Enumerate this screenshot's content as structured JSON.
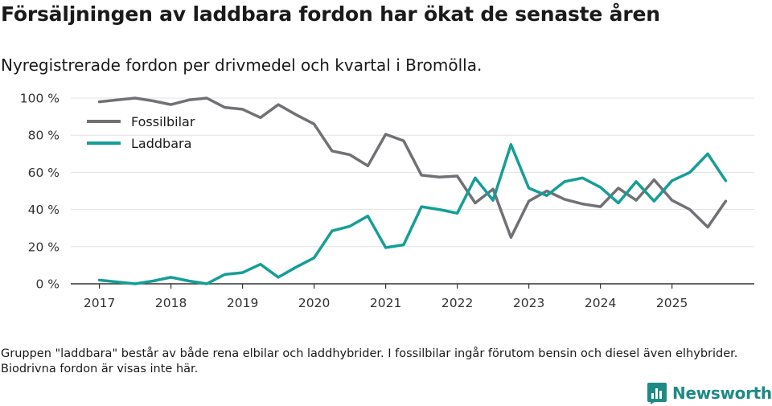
{
  "header": {
    "title": "Försäljningen av laddbara fordon har ökat de senaste åren",
    "subtitle": "Nyregistrerade fordon per drivmedel och kvartal i Bromölla."
  },
  "footer": {
    "note": "Gruppen \"laddbara\" består av både rena elbilar och laddhybrider. I fossilbilar ingår förutom bensin och diesel även elhybrider. Biodrivna fordon är visas inte här.",
    "brand": "Newsworthy"
  },
  "colors": {
    "fossil": "#717074",
    "laddbara": "#149e97",
    "grid": "#e3e3e3",
    "axis": "#333333",
    "brand": "#1e8a86"
  },
  "chart_data": {
    "type": "line",
    "title": "Försäljningen av laddbara fordon har ökat de senaste åren",
    "subtitle": "Nyregistrerade fordon per drivmedel och kvartal i Bromölla.",
    "xlabel": "",
    "ylabel": "",
    "x": [
      2017.0,
      2017.25,
      2017.5,
      2017.75,
      2018.0,
      2018.25,
      2018.5,
      2018.75,
      2019.0,
      2019.25,
      2019.5,
      2019.75,
      2020.0,
      2020.25,
      2020.5,
      2020.75,
      2021.0,
      2021.25,
      2021.5,
      2021.75,
      2022.0,
      2022.25,
      2022.5,
      2022.75,
      2023.0,
      2023.25,
      2023.5,
      2023.75,
      2024.0,
      2024.25,
      2024.5,
      2024.75,
      2025.0,
      2025.25,
      2025.5,
      2025.75
    ],
    "x_ticks": [
      2017,
      2018,
      2019,
      2020,
      2021,
      2022,
      2023,
      2024,
      2025
    ],
    "x_tick_labels": [
      "2017",
      "2018",
      "2019",
      "2020",
      "2021",
      "2022",
      "2023",
      "2024",
      "2025"
    ],
    "xlim": [
      2016.6,
      2026.15
    ],
    "y_ticks": [
      0,
      20,
      40,
      60,
      80,
      100
    ],
    "y_tick_labels": [
      "0 %",
      "20 %",
      "40 %",
      "60 %",
      "80 %",
      "100 %"
    ],
    "ylim": [
      0,
      100
    ],
    "grid": true,
    "legend_position": "top-left",
    "series": [
      {
        "name": "Fossilbilar",
        "values": [
          98,
          99,
          100,
          98.5,
          96.5,
          99,
          100,
          95,
          94,
          89.5,
          96.5,
          91,
          86,
          71.5,
          69.5,
          63.5,
          80.5,
          77,
          58.5,
          57.5,
          58,
          43.5,
          51,
          25,
          44.5,
          50,
          45.5,
          43,
          41.5,
          51.5,
          45,
          56,
          45,
          40,
          30.5,
          44.5
        ]
      },
      {
        "name": "Laddbara",
        "values": [
          2,
          1,
          0,
          1.5,
          3.5,
          1.5,
          0,
          5,
          6,
          10.5,
          3.5,
          9,
          14,
          28.5,
          31,
          36.5,
          19.5,
          21,
          41.5,
          40,
          38,
          57,
          45,
          75,
          51.5,
          47.5,
          55,
          57,
          52,
          43.5,
          55,
          44.5,
          55.5,
          60,
          70,
          55.5
        ]
      }
    ]
  }
}
